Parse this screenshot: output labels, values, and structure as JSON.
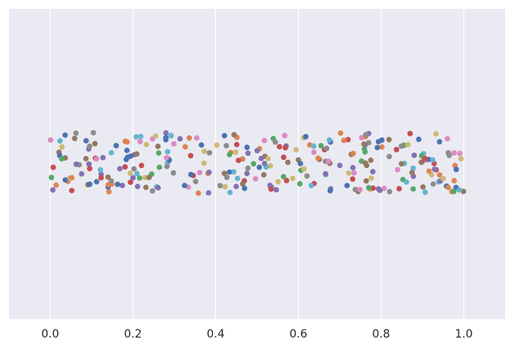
{
  "chart_data": {
    "type": "scatter",
    "style": "seaborn-darkgrid strip plot (single category, jittered)",
    "title": "",
    "xlabel": "",
    "ylabel": "",
    "xlim": [
      -0.1,
      1.1
    ],
    "xticks": [
      0.0,
      0.2,
      0.4,
      0.6,
      0.8,
      1.0
    ],
    "xtick_labels": [
      "0.0",
      "0.2",
      "0.4",
      "0.6",
      "0.8",
      "1.0"
    ],
    "grid": "vertical",
    "y_axis": "categorical (single unlabeled strip)",
    "n_points": 300,
    "colors": {
      "background": "#eaeaf2",
      "grid": "#ffffff",
      "palette": [
        "#4c72b0",
        "#dd8452",
        "#55a868",
        "#c44e52",
        "#8172b3",
        "#937860",
        "#da8bc3",
        "#8c8c8c",
        "#ccb974",
        "#64b5cd"
      ]
    }
  }
}
